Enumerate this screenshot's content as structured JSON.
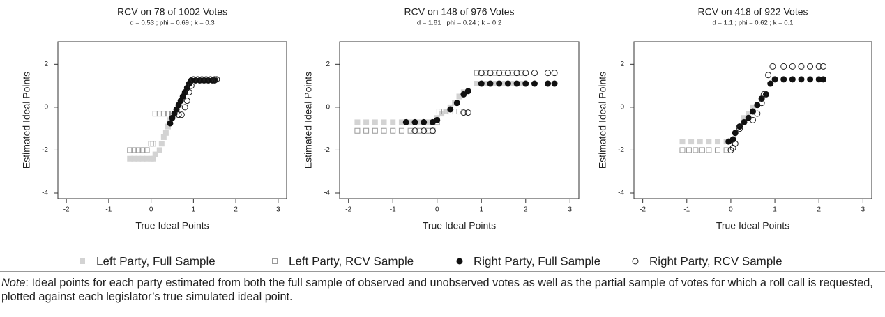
{
  "chart_data": [
    {
      "type": "scatter",
      "title": "RCV on 78 of 1002 Votes",
      "subtitle": "d = 0.53 ; phi = 0.69 ; k = 0.3",
      "xlabel": "True Ideal Points",
      "ylabel": "Estimated Ideal Points",
      "xlim": [
        -2.2,
        3.2
      ],
      "ylim": [
        -4.26,
        3.05
      ],
      "xticks": [
        -2,
        -1,
        0,
        1,
        2,
        3
      ],
      "yticks": [
        -4,
        -2,
        0,
        2
      ],
      "series": [
        {
          "name": "Left Party, Full Sample",
          "color": "#d3d3d3",
          "marker": "square",
          "filled": true,
          "x": [
            -0.5,
            -0.4,
            -0.3,
            -0.2,
            -0.1,
            0.0,
            0.05,
            0.1,
            0.2,
            0.25,
            0.3,
            0.35,
            0.4,
            0.45
          ],
          "values": [
            -2.4,
            -2.4,
            -2.4,
            -2.4,
            -2.4,
            -2.4,
            -2.4,
            -2.2,
            -2.0,
            -1.7,
            -1.4,
            -1.2,
            -0.9,
            -0.6
          ]
        },
        {
          "name": "Left Party, RCV Sample",
          "color": "#999999",
          "marker": "square",
          "filled": false,
          "x": [
            -0.5,
            -0.4,
            -0.3,
            -0.2,
            -0.1,
            0.0,
            0.05,
            0.1,
            0.2,
            0.3,
            0.4,
            0.5
          ],
          "values": [
            -2.0,
            -2.0,
            -2.0,
            -2.0,
            -2.0,
            -1.7,
            -1.7,
            -0.3,
            -0.3,
            -0.3,
            -0.3,
            -0.3
          ]
        },
        {
          "name": "Right Party, Full Sample",
          "color": "#111111",
          "marker": "circle",
          "filled": true,
          "x": [
            0.45,
            0.5,
            0.55,
            0.6,
            0.65,
            0.7,
            0.75,
            0.8,
            0.85,
            0.9,
            0.95,
            1.05,
            1.15,
            1.25,
            1.35,
            1.45,
            1.5
          ],
          "values": [
            -0.75,
            -0.5,
            -0.3,
            -0.1,
            0.1,
            0.3,
            0.5,
            0.7,
            0.9,
            1.1,
            1.25,
            1.25,
            1.25,
            1.25,
            1.25,
            1.25,
            1.25
          ]
        },
        {
          "name": "Right Party, RCV Sample",
          "color": "#222222",
          "marker": "circle",
          "filled": false,
          "x": [
            0.65,
            0.72,
            0.8,
            0.85,
            0.9,
            0.95,
            1.0,
            1.1,
            1.2,
            1.3,
            1.4,
            1.5,
            1.55
          ],
          "values": [
            -0.35,
            -0.35,
            0.0,
            0.3,
            0.7,
            1.0,
            1.3,
            1.3,
            1.3,
            1.3,
            1.3,
            1.3,
            1.3
          ]
        }
      ]
    },
    {
      "type": "scatter",
      "title": "RCV on 148 of 976 Votes",
      "subtitle": "d = 1.81 ; phi = 0.24 ; k = 0.2",
      "xlabel": "True Ideal Points",
      "ylabel": "Estimated Ideal Points",
      "xlim": [
        -2.2,
        3.2
      ],
      "ylim": [
        -4.26,
        3.05
      ],
      "xticks": [
        -2,
        -1,
        0,
        1,
        2,
        3
      ],
      "yticks": [
        -4,
        -2,
        0,
        2
      ],
      "series": [
        {
          "name": "Left Party, Full Sample",
          "color": "#d3d3d3",
          "marker": "square",
          "filled": true,
          "x": [
            -1.8,
            -1.6,
            -1.4,
            -1.2,
            -1.0,
            -0.8,
            -0.6,
            -0.4,
            -0.2,
            -0.1,
            0.0,
            0.1,
            0.2,
            0.3,
            0.4,
            0.5,
            0.6,
            0.9,
            1.1,
            1.3,
            1.5,
            1.7,
            1.9
          ],
          "values": [
            -0.7,
            -0.7,
            -0.7,
            -0.7,
            -0.7,
            -0.7,
            -0.7,
            -0.7,
            -0.7,
            -0.7,
            -0.5,
            -0.3,
            -0.2,
            0.0,
            0.2,
            0.5,
            0.7,
            1.1,
            1.1,
            1.1,
            1.1,
            1.1,
            1.1
          ]
        },
        {
          "name": "Left Party, RCV Sample",
          "color": "#999999",
          "marker": "square",
          "filled": false,
          "x": [
            -1.8,
            -1.6,
            -1.4,
            -1.2,
            -1.0,
            -0.8,
            -0.6,
            -0.4,
            -0.2,
            -0.1,
            0.0,
            0.05,
            0.1,
            0.3,
            0.5,
            0.9,
            1.1,
            1.3,
            1.5,
            1.7,
            1.9
          ],
          "values": [
            -1.1,
            -1.1,
            -1.1,
            -1.1,
            -1.1,
            -1.1,
            -1.1,
            -1.1,
            -1.1,
            -1.1,
            -0.7,
            -0.2,
            -0.2,
            -0.2,
            -0.2,
            1.6,
            1.6,
            1.6,
            1.6,
            1.6,
            1.6
          ]
        },
        {
          "name": "Right Party, Full Sample",
          "color": "#111111",
          "marker": "circle",
          "filled": true,
          "x": [
            -0.7,
            -0.5,
            -0.3,
            -0.1,
            0.0,
            0.3,
            0.45,
            0.6,
            0.7,
            1.0,
            1.2,
            1.4,
            1.6,
            1.8,
            2.0,
            2.2,
            2.5,
            2.65
          ],
          "values": [
            -0.7,
            -0.7,
            -0.7,
            -0.7,
            -0.6,
            -0.1,
            0.2,
            0.6,
            0.75,
            1.1,
            1.1,
            1.1,
            1.1,
            1.1,
            1.1,
            1.1,
            1.1,
            1.1
          ]
        },
        {
          "name": "Right Party, RCV Sample",
          "color": "#222222",
          "marker": "circle",
          "filled": false,
          "x": [
            -0.5,
            -0.3,
            -0.1,
            0.6,
            0.7,
            1.0,
            1.2,
            1.4,
            1.6,
            1.8,
            2.0,
            2.2,
            2.5,
            2.65
          ],
          "values": [
            -1.1,
            -1.1,
            -1.1,
            -0.25,
            -0.25,
            1.6,
            1.6,
            1.6,
            1.6,
            1.6,
            1.6,
            1.6,
            1.6,
            1.6
          ]
        }
      ]
    },
    {
      "type": "scatter",
      "title": "RCV on 418 of 922 Votes",
      "subtitle": "d = 1.1 ; phi = 0.62 ; k = 0.1",
      "xlabel": "True Ideal Points",
      "ylabel": "Estimated Ideal Points",
      "xlim": [
        -2.2,
        3.2
      ],
      "ylim": [
        -4.26,
        3.05
      ],
      "xticks": [
        -2,
        -1,
        0,
        1,
        2,
        3
      ],
      "yticks": [
        -4,
        -2,
        0,
        2
      ],
      "series": [
        {
          "name": "Left Party, Full Sample",
          "color": "#d3d3d3",
          "marker": "square",
          "filled": true,
          "x": [
            -1.1,
            -0.9,
            -0.7,
            -0.5,
            -0.3,
            -0.1,
            0.3,
            0.4,
            0.5
          ],
          "values": [
            -1.6,
            -1.6,
            -1.6,
            -1.6,
            -1.6,
            -1.6,
            -0.5,
            -0.3,
            0.0
          ]
        },
        {
          "name": "Left Party, RCV Sample",
          "color": "#999999",
          "marker": "square",
          "filled": false,
          "x": [
            -1.1,
            -0.95,
            -0.8,
            -0.65,
            -0.5,
            -0.3,
            -0.1
          ],
          "values": [
            -2.0,
            -2.0,
            -2.0,
            -2.0,
            -2.0,
            -2.0,
            -2.0
          ]
        },
        {
          "name": "Right Party, Full Sample",
          "color": "#111111",
          "marker": "circle",
          "filled": true,
          "x": [
            -0.05,
            0.05,
            0.1,
            0.2,
            0.3,
            0.4,
            0.5,
            0.6,
            0.7,
            0.8,
            0.9,
            1.0,
            1.2,
            1.4,
            1.6,
            1.8,
            2.0,
            2.1
          ],
          "values": [
            -1.6,
            -1.5,
            -1.2,
            -0.9,
            -0.7,
            -0.5,
            -0.2,
            0.1,
            0.4,
            0.6,
            1.1,
            1.3,
            1.3,
            1.3,
            1.3,
            1.3,
            1.3,
            1.3
          ]
        },
        {
          "name": "Right Party, RCV Sample",
          "color": "#222222",
          "marker": "circle",
          "filled": false,
          "x": [
            0.0,
            0.05,
            0.1,
            0.2,
            0.3,
            0.5,
            0.6,
            0.7,
            0.75,
            0.85,
            0.95,
            1.2,
            1.4,
            1.6,
            1.8,
            2.0,
            2.1
          ],
          "values": [
            -2.0,
            -1.9,
            -1.7,
            -1.0,
            -0.7,
            -0.6,
            -0.3,
            0.2,
            0.6,
            1.5,
            1.9,
            1.9,
            1.9,
            1.9,
            1.9,
            1.9,
            1.9
          ]
        }
      ]
    }
  ],
  "note": {
    "label": "Note",
    "text": ": Ideal points for each party estimated from both the full sample of observed and unobserved votes as well as the partial sample of votes for which a roll call is requested, plotted against each legislator’s true simulated ideal point."
  }
}
